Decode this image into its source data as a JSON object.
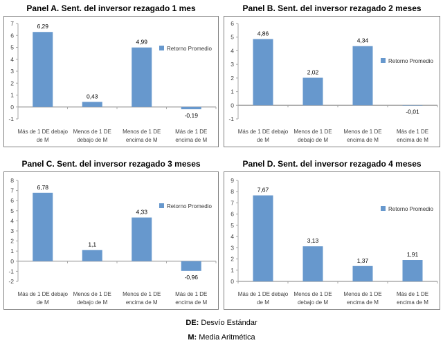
{
  "colors": {
    "bar": "#6798CD",
    "axis": "#a6a6a6",
    "zero_line": "#9a9a9a",
    "box_border": "#7f7f7f",
    "tick_label": "#404040",
    "category_label": "#404040",
    "value_label": "#000000",
    "legend_text": "#333333"
  },
  "chart_data": [
    {
      "type": "bar",
      "title": "Panel A. Sent. del inversor rezagado 1 mes",
      "categories": [
        "Más de 1 DE debajo de M",
        "Menos de 1 DE debajo de M",
        "Menos de 1 DE encima de M",
        "Más de 1 DE encima de M"
      ],
      "category_lines": [
        [
          "Más de 1 DE debajo",
          "de M"
        ],
        [
          "Menos de 1 DE",
          "debajo de M"
        ],
        [
          "Menos de 1 DE",
          "encima de M"
        ],
        [
          "Más de 1 DE",
          "encima de M"
        ]
      ],
      "values": [
        6.29,
        0.43,
        4.99,
        -0.19
      ],
      "value_labels": [
        "6,29",
        "0,43",
        "4,99",
        "-0,19"
      ],
      "legend": [
        "Retorno Promedio"
      ],
      "legend_position": "right",
      "ylim": [
        -1,
        7
      ],
      "ytick_step": 1,
      "grid": false
    },
    {
      "type": "bar",
      "title": "Panel B. Sent. del inversor rezagado 2 meses",
      "categories": [
        "Más de 1 DE debajo de M",
        "Menos de 1 DE debajo de M",
        "Menos de 1 DE encima de M",
        "Más de 1 DE encima de M"
      ],
      "category_lines": [
        [
          "Más de 1 DE debajo",
          "de M"
        ],
        [
          "Menos de 1 DE",
          "debajo de M"
        ],
        [
          "Menos de 1 DE",
          "encima de M"
        ],
        [
          "Más de 1 DE",
          "encima de M"
        ]
      ],
      "values": [
        4.86,
        2.02,
        4.34,
        -0.01
      ],
      "value_labels": [
        "4,86",
        "2,02",
        "4,34",
        "-0,01"
      ],
      "legend": [
        "Retorno Promedio"
      ],
      "legend_position": "right",
      "ylim": [
        -1,
        6
      ],
      "ytick_step": 1,
      "grid": false
    },
    {
      "type": "bar",
      "title": "Panel C. Sent. del inversor rezagado 3 meses",
      "categories": [
        "Más de 1 DE debajo de M",
        "Menos de 1 DE debajo de M",
        "Menos de 1 DE encima de M",
        "Más de 1 DE encima de M"
      ],
      "category_lines": [
        [
          "Más de 1 DE debajo",
          "de M"
        ],
        [
          "Menos de 1 DE",
          "debajo de M"
        ],
        [
          "Menos de 1 DE",
          "encima de M"
        ],
        [
          "Más de 1 DE",
          "encima de M"
        ]
      ],
      "values": [
        6.78,
        1.1,
        4.33,
        -0.96
      ],
      "value_labels": [
        "6,78",
        "1,1",
        "4,33",
        "-0,96"
      ],
      "legend": [
        "Retorno Promedio"
      ],
      "legend_position": "right",
      "ylim": [
        -2,
        8
      ],
      "ytick_step": 1,
      "grid": false
    },
    {
      "type": "bar",
      "title": "Panel D. Sent. del inversor rezagado 4 meses",
      "categories": [
        "Más de 1 DE debajo de M",
        "Menos de 1 DE debajo de M",
        "Menos de 1 DE encima de M",
        "Más de 1 DE encima de M"
      ],
      "category_lines": [
        [
          "Más de 1 DE debajo",
          "de M"
        ],
        [
          "Menos de 1 DE",
          "debajo de M"
        ],
        [
          "Menos de 1 DE",
          "encima de M"
        ],
        [
          "Más de 1 DE",
          "encima de M"
        ]
      ],
      "values": [
        7.67,
        3.13,
        1.37,
        1.91
      ],
      "value_labels": [
        "7,67",
        "3,13",
        "1,37",
        "1,91"
      ],
      "legend": [
        "Retorno Promedio"
      ],
      "legend_position": "right",
      "ylim": [
        0,
        9
      ],
      "ytick_step": 1,
      "grid": false
    }
  ],
  "footnotes": [
    {
      "term": "DE:",
      "definition": "Desvío Estándar"
    },
    {
      "term": "M:",
      "definition": "Media Aritmética"
    }
  ]
}
